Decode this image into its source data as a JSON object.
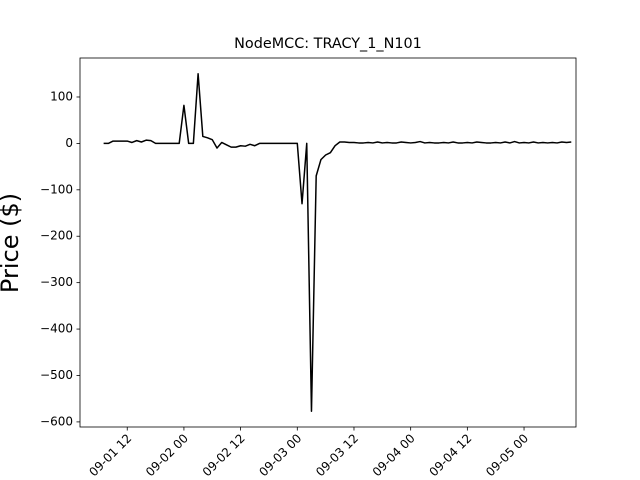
{
  "chart_data": {
    "type": "line",
    "title": "NodeMCC: TRACY_1_N101",
    "y_label": "Price ($)",
    "x": [
      "09-01 07",
      "09-01 08",
      "09-01 09",
      "09-01 10",
      "09-01 11",
      "09-01 12",
      "09-01 13",
      "09-01 14",
      "09-01 15",
      "09-01 16",
      "09-01 17",
      "09-01 18",
      "09-01 19",
      "09-01 20",
      "09-01 21",
      "09-01 22",
      "09-01 23",
      "09-02 00",
      "09-02 01",
      "09-02 02",
      "09-02 03",
      "09-02 04",
      "09-02 05",
      "09-02 06",
      "09-02 07",
      "09-02 08",
      "09-02 09",
      "09-02 10",
      "09-02 11",
      "09-02 12",
      "09-02 13",
      "09-02 14",
      "09-02 15",
      "09-02 16",
      "09-02 17",
      "09-02 18",
      "09-02 19",
      "09-02 20",
      "09-02 21",
      "09-02 22",
      "09-02 23",
      "09-03 00",
      "09-03 01",
      "09-03 02",
      "09-03 03",
      "09-03 04",
      "09-03 05",
      "09-03 06",
      "09-03 07",
      "09-03 08",
      "09-03 09",
      "09-03 10",
      "09-03 11",
      "09-03 12",
      "09-03 13",
      "09-03 14",
      "09-03 15",
      "09-03 16",
      "09-03 17",
      "09-03 18",
      "09-03 19",
      "09-03 20",
      "09-03 21",
      "09-03 22",
      "09-03 23",
      "09-04 00",
      "09-04 01",
      "09-04 02",
      "09-04 03",
      "09-04 04",
      "09-04 05",
      "09-04 06",
      "09-04 07",
      "09-04 08",
      "09-04 09",
      "09-04 10",
      "09-04 11",
      "09-04 12",
      "09-04 13",
      "09-04 14",
      "09-04 15",
      "09-04 16",
      "09-04 17",
      "09-04 18",
      "09-04 19",
      "09-04 20",
      "09-04 21",
      "09-04 22",
      "09-04 23",
      "09-05 00",
      "09-05 01",
      "09-05 02",
      "09-05 03",
      "09-05 04",
      "09-05 05",
      "09-05 06",
      "09-05 07",
      "09-05 08",
      "09-05 09",
      "09-05 10"
    ],
    "series": [
      {
        "color": "#000000",
        "values": [
          0,
          0,
          5,
          5,
          5,
          5,
          2,
          6,
          3,
          7,
          6,
          0,
          0,
          0,
          0,
          0,
          0,
          82,
          0,
          0,
          150,
          15,
          12,
          8,
          -10,
          2,
          -3,
          -8,
          -8,
          -5,
          -6,
          -2,
          -5,
          0,
          0,
          0,
          0,
          0,
          0,
          0,
          0,
          0,
          -130,
          0,
          -577,
          -70,
          -35,
          -25,
          -20,
          -5,
          3,
          3,
          2,
          2,
          1,
          1,
          2,
          1,
          3,
          1,
          2,
          1,
          1,
          3,
          2,
          1,
          2,
          4,
          1,
          2,
          1,
          1,
          2,
          1,
          3,
          1,
          1,
          2,
          1,
          3,
          2,
          1,
          1,
          2,
          1,
          3,
          1,
          4,
          1,
          2,
          1,
          3,
          1,
          2,
          1,
          2,
          1,
          3,
          2,
          3
        ]
      }
    ],
    "xlim": [
      "09-01 02",
      "09-05 11"
    ],
    "xticks": [
      "09-01 12",
      "09-02 00",
      "09-02 12",
      "09-03 00",
      "09-03 12",
      "09-04 00",
      "09-04 12",
      "09-05 00"
    ],
    "ylim": [
      -611,
      184
    ],
    "yticks": [
      100,
      0,
      {
        "value": -100,
        "label": "−100"
      },
      {
        "value": -200,
        "label": "−200"
      },
      {
        "value": -300,
        "label": "−300"
      },
      {
        "value": -400,
        "label": "−400"
      },
      {
        "value": -500,
        "label": "−500"
      },
      {
        "value": -600,
        "label": "−600"
      }
    ],
    "grid": false
  }
}
